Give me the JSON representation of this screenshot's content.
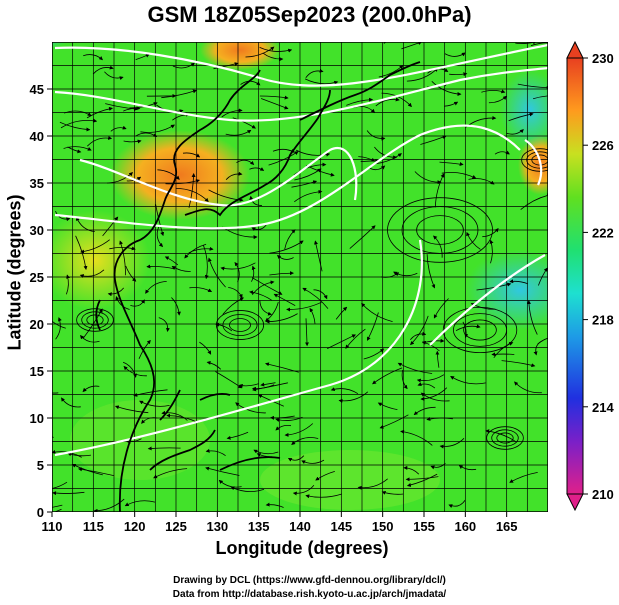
{
  "header": {
    "title": "GSM 18Z05Sep2023 (200.0hPa)"
  },
  "axes": {
    "xlabel": "Longitude (degrees)",
    "ylabel": "Latitude  (degrees)",
    "x_ticks": [
      "110",
      "115",
      "120",
      "125",
      "130",
      "135",
      "140",
      "145",
      "150",
      "155",
      "160",
      "165"
    ],
    "y_ticks": [
      "0",
      "5",
      "10",
      "15",
      "20",
      "25",
      "30",
      "35",
      "40",
      "45"
    ],
    "xlim": [
      110,
      170
    ],
    "ylim": [
      0,
      50
    ]
  },
  "colorbar": {
    "ticks": [
      "230",
      "226",
      "222",
      "218",
      "214",
      "210"
    ],
    "range": [
      210,
      230
    ],
    "colors": [
      "#e0208a",
      "#5a1ad0",
      "#1e50e6",
      "#1ec8e6",
      "#20e070",
      "#50e020",
      "#c8e020",
      "#ff9a1e",
      "#e84020"
    ]
  },
  "footer": {
    "line1": "Drawing by DCL (https://www.gfd-dennou.org/library/dcl/)",
    "line2": "Data from http://database.rish.kyoto-u.ac.jp/arch/jmadata/"
  }
}
